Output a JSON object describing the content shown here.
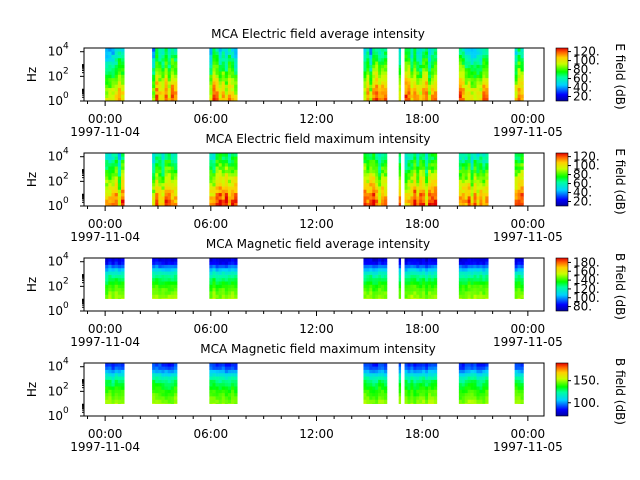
{
  "chart_data": [
    {
      "type": "heatmap",
      "title": "MCA  Electric field average intensity",
      "ylabel": "Hz",
      "colorbar_label": "E field (dB)",
      "y_ticks": [
        "10",
        "10",
        "10"
      ],
      "y_tick_exps": [
        "0",
        "2",
        "4"
      ],
      "ylim": [
        1,
        20000
      ],
      "y_scale": "log",
      "x_ticks": [
        "00:00",
        "06:00",
        "12:00",
        "18:00",
        "00:00"
      ],
      "x_dates": [
        "1997-11-04",
        "1997-11-05"
      ],
      "xlim": [
        "1997-11-03T22:48",
        "1997-11-05T00:55"
      ],
      "colorbar_ticks": [
        "20.",
        "40.",
        "60.",
        "80.",
        "100.",
        "120."
      ],
      "colorbar_range": [
        10,
        128
      ],
      "data_intervals": [
        [
          "00:00",
          "01:05"
        ],
        [
          "02:40",
          "04:05"
        ],
        [
          "05:55",
          "07:30"
        ],
        [
          "14:40",
          "16:00"
        ],
        [
          "16:40",
          "16:47"
        ],
        [
          "17:00",
          "18:50"
        ],
        [
          "20:05",
          "21:45"
        ],
        [
          "23:15",
          "23:45"
        ]
      ],
      "spectrum": {
        "hz": [
          1,
          10,
          100,
          1000,
          10000
        ],
        "db": [
          110,
          100,
          85,
          70,
          55
        ]
      }
    },
    {
      "type": "heatmap",
      "title": "MCA  Electric field maximum intensity",
      "ylabel": "Hz",
      "colorbar_label": "E field (dB)",
      "y_ticks": [
        "10",
        "10",
        "10"
      ],
      "y_tick_exps": [
        "0",
        "2",
        "4"
      ],
      "ylim": [
        1,
        20000
      ],
      "y_scale": "log",
      "x_ticks": [
        "00:00",
        "06:00",
        "12:00",
        "18:00",
        "00:00"
      ],
      "x_dates": [
        "1997-11-04",
        "1997-11-05"
      ],
      "xlim": [
        "1997-11-03T22:48",
        "1997-11-05T00:55"
      ],
      "colorbar_ticks": [
        "20.",
        "40.",
        "60.",
        "80.",
        "100.",
        "120."
      ],
      "colorbar_range": [
        10,
        128
      ],
      "data_intervals": [
        [
          "00:00",
          "01:05"
        ],
        [
          "02:40",
          "04:05"
        ],
        [
          "05:55",
          "07:30"
        ],
        [
          "14:40",
          "16:00"
        ],
        [
          "16:40",
          "16:47"
        ],
        [
          "17:00",
          "18:50"
        ],
        [
          "20:05",
          "21:45"
        ],
        [
          "23:15",
          "23:45"
        ]
      ],
      "spectrum": {
        "hz": [
          1,
          10,
          100,
          1000,
          10000
        ],
        "db": [
          115,
          105,
          90,
          75,
          60
        ]
      }
    },
    {
      "type": "heatmap",
      "title": "MCA  Magnetic field average intensity",
      "ylabel": "Hz",
      "colorbar_label": "B field (dB)",
      "y_ticks": [
        "10",
        "10",
        "10"
      ],
      "y_tick_exps": [
        "0",
        "2",
        "4"
      ],
      "ylim": [
        1,
        20000
      ],
      "y_scale": "log",
      "x_ticks": [
        "00:00",
        "06:00",
        "12:00",
        "18:00",
        "00:00"
      ],
      "x_dates": [
        "1997-11-04",
        "1997-11-05"
      ],
      "xlim": [
        "1997-11-03T22:48",
        "1997-11-05T00:55"
      ],
      "colorbar_ticks": [
        "80.",
        "100.",
        "120.",
        "140.",
        "160.",
        "180."
      ],
      "colorbar_range": [
        70,
        190
      ],
      "data_intervals": [
        [
          "00:00",
          "01:05"
        ],
        [
          "02:40",
          "04:05"
        ],
        [
          "05:55",
          "07:30"
        ],
        [
          "14:40",
          "16:00"
        ],
        [
          "16:40",
          "16:47"
        ],
        [
          "17:00",
          "18:50"
        ],
        [
          "20:05",
          "21:45"
        ],
        [
          "23:15",
          "23:45"
        ]
      ],
      "spectrum": {
        "hz": [
          10,
          100,
          1000,
          10000
        ],
        "db": [
          150,
          140,
          120,
          80
        ]
      }
    },
    {
      "type": "heatmap",
      "title": "MCA  Magnetic field maximum intensity",
      "ylabel": "Hz",
      "colorbar_label": "B field (dB)",
      "y_ticks": [
        "10",
        "10",
        "10"
      ],
      "y_tick_exps": [
        "0",
        "2",
        "4"
      ],
      "ylim": [
        1,
        20000
      ],
      "y_scale": "log",
      "x_ticks": [
        "00:00",
        "06:00",
        "12:00",
        "18:00",
        "00:00"
      ],
      "x_dates": [
        "1997-11-04",
        "1997-11-05"
      ],
      "xlim": [
        "1997-11-03T22:48",
        "1997-11-05T00:55"
      ],
      "colorbar_ticks": [
        "100.",
        "150."
      ],
      "colorbar_range": [
        70,
        190
      ],
      "data_intervals": [
        [
          "00:00",
          "01:05"
        ],
        [
          "02:40",
          "04:05"
        ],
        [
          "05:55",
          "07:30"
        ],
        [
          "14:40",
          "16:00"
        ],
        [
          "16:40",
          "16:47"
        ],
        [
          "17:00",
          "18:50"
        ],
        [
          "20:05",
          "21:45"
        ],
        [
          "23:15",
          "23:45"
        ]
      ],
      "spectrum": {
        "hz": [
          10,
          100,
          1000,
          10000
        ],
        "db": [
          150,
          140,
          125,
          90
        ]
      }
    }
  ]
}
